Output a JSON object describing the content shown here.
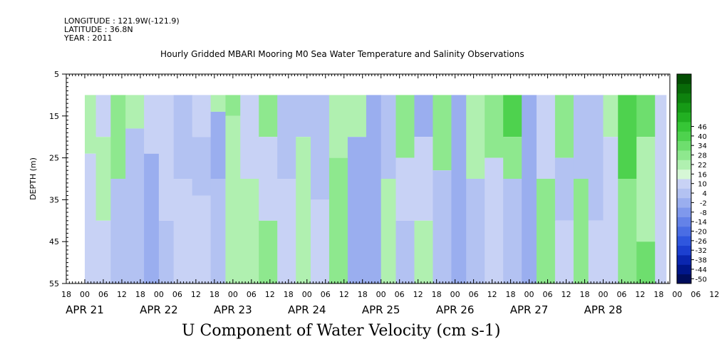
{
  "header": {
    "longitude": "LONGITUDE : 121.9W(-121.9)",
    "latitude": "LATITUDE : 36.8N",
    "year": "YEAR : 2011"
  },
  "chart_data": {
    "type": "heatmap",
    "title": "Hourly Gridded MBARI Mooring M0 Sea Water Temperature and Salinity Observations",
    "xlabel": "U Component of Water Velocity (cm s-1)",
    "ylabel": "DEPTH (m)",
    "ylim": [
      55,
      5
    ],
    "y_ticks": [
      5,
      15,
      25,
      35,
      45,
      55
    ],
    "x_hour_ticks": [
      "18",
      "00",
      "06",
      "12",
      "18",
      "00",
      "06",
      "12",
      "18",
      "00",
      "06",
      "12",
      "18",
      "00",
      "06",
      "12",
      "18",
      "00",
      "06",
      "12",
      "18",
      "00",
      "06",
      "12",
      "18",
      "00",
      "06",
      "12",
      "18",
      "00",
      "06",
      "12",
      "18",
      "00",
      "06",
      "12",
      "18"
    ],
    "x_date_labels": [
      "APR 21",
      "APR 22",
      "APR 23",
      "APR 24",
      "APR 25",
      "APR 26",
      "APR 27",
      "APR 28"
    ],
    "data_extent": {
      "time_start": "APR 21 00",
      "time_end": "APR 28 20",
      "depth_top": 10,
      "depth_bottom": 55
    },
    "colorbar": {
      "levels": [
        -50,
        -44,
        -38,
        -32,
        -26,
        -20,
        -14,
        -8,
        -2,
        4,
        10,
        16,
        22,
        28,
        34,
        40,
        46
      ],
      "colors": [
        "#000d5c",
        "#00168a",
        "#0a26b0",
        "#1c3fd0",
        "#2f56de",
        "#4a6de4",
        "#6482e8",
        "#7f98ec",
        "#9aaeef",
        "#b3c2f2",
        "#c8d2f5",
        "#d6f7d6",
        "#b0f0b0",
        "#8ee88e",
        "#6ede6e",
        "#4ed24e",
        "#36c636",
        "#22b022",
        "#169a16",
        "#0e820e",
        "#086a08",
        "#034e03"
      ]
    },
    "time_columns": [
      {
        "day": 0.0,
        "bands": [
          [
            10,
            24,
            8
          ],
          [
            24,
            55,
            -8
          ]
        ]
      },
      {
        "day": 0.15,
        "bands": [
          [
            10,
            20,
            -4
          ],
          [
            20,
            40,
            6
          ],
          [
            40,
            55,
            -6
          ]
        ]
      },
      {
        "day": 0.35,
        "bands": [
          [
            10,
            30,
            10
          ],
          [
            30,
            55,
            -10
          ]
        ]
      },
      {
        "day": 0.55,
        "bands": [
          [
            10,
            18,
            4
          ],
          [
            18,
            55,
            -12
          ]
        ]
      },
      {
        "day": 0.8,
        "bands": [
          [
            10,
            24,
            -6
          ],
          [
            24,
            55,
            -16
          ]
        ]
      },
      {
        "day": 1.0,
        "bands": [
          [
            10,
            40,
            -8
          ],
          [
            40,
            55,
            -14
          ]
        ]
      },
      {
        "day": 1.2,
        "bands": [
          [
            10,
            30,
            -10
          ],
          [
            30,
            55,
            -6
          ]
        ]
      },
      {
        "day": 1.45,
        "bands": [
          [
            10,
            20,
            -4
          ],
          [
            20,
            34,
            -10
          ],
          [
            34,
            55,
            -8
          ]
        ]
      },
      {
        "day": 1.7,
        "bands": [
          [
            10,
            14,
            8
          ],
          [
            14,
            30,
            -20
          ],
          [
            30,
            55,
            -12
          ]
        ]
      },
      {
        "day": 1.9,
        "bands": [
          [
            10,
            15,
            14
          ],
          [
            15,
            55,
            6
          ]
        ]
      },
      {
        "day": 2.1,
        "bands": [
          [
            10,
            30,
            -6
          ],
          [
            30,
            55,
            8
          ]
        ]
      },
      {
        "day": 2.35,
        "bands": [
          [
            10,
            20,
            14
          ],
          [
            20,
            40,
            -6
          ],
          [
            40,
            55,
            10
          ]
        ]
      },
      {
        "day": 2.6,
        "bands": [
          [
            10,
            30,
            -10
          ],
          [
            30,
            55,
            -4
          ]
        ]
      },
      {
        "day": 2.85,
        "bands": [
          [
            10,
            20,
            -12
          ],
          [
            20,
            55,
            6
          ]
        ]
      },
      {
        "day": 3.05,
        "bands": [
          [
            10,
            35,
            -14
          ],
          [
            35,
            55,
            -6
          ]
        ]
      },
      {
        "day": 3.3,
        "bands": [
          [
            10,
            25,
            8
          ],
          [
            25,
            55,
            12
          ]
        ]
      },
      {
        "day": 3.55,
        "bands": [
          [
            10,
            20,
            6
          ],
          [
            20,
            55,
            -16
          ]
        ]
      },
      {
        "day": 3.8,
        "bands": [
          [
            10,
            55,
            -20
          ]
        ]
      },
      {
        "day": 4.0,
        "bands": [
          [
            10,
            30,
            -10
          ],
          [
            30,
            55,
            4
          ]
        ]
      },
      {
        "day": 4.2,
        "bands": [
          [
            10,
            25,
            10
          ],
          [
            25,
            40,
            -8
          ],
          [
            40,
            55,
            -12
          ]
        ]
      },
      {
        "day": 4.45,
        "bands": [
          [
            10,
            20,
            -20
          ],
          [
            20,
            40,
            -8
          ],
          [
            40,
            55,
            8
          ]
        ]
      },
      {
        "day": 4.7,
        "bands": [
          [
            10,
            28,
            10
          ],
          [
            28,
            55,
            -10
          ]
        ]
      },
      {
        "day": 4.95,
        "bands": [
          [
            10,
            55,
            -18
          ]
        ]
      },
      {
        "day": 5.15,
        "bands": [
          [
            10,
            30,
            6
          ],
          [
            30,
            55,
            -14
          ]
        ]
      },
      {
        "day": 5.4,
        "bands": [
          [
            10,
            25,
            14
          ],
          [
            25,
            55,
            -8
          ]
        ]
      },
      {
        "day": 5.65,
        "bands": [
          [
            10,
            20,
            22
          ],
          [
            20,
            30,
            10
          ],
          [
            30,
            55,
            -10
          ]
        ]
      },
      {
        "day": 5.9,
        "bands": [
          [
            10,
            55,
            -16
          ]
        ]
      },
      {
        "day": 6.1,
        "bands": [
          [
            10,
            30,
            -8
          ],
          [
            30,
            55,
            10
          ]
        ]
      },
      {
        "day": 6.35,
        "bands": [
          [
            10,
            25,
            14
          ],
          [
            25,
            40,
            -10
          ],
          [
            40,
            55,
            -6
          ]
        ]
      },
      {
        "day": 6.6,
        "bands": [
          [
            10,
            30,
            -14
          ],
          [
            30,
            55,
            10
          ]
        ]
      },
      {
        "day": 6.8,
        "bands": [
          [
            10,
            40,
            -10
          ],
          [
            40,
            55,
            -4
          ]
        ]
      },
      {
        "day": 7.0,
        "bands": [
          [
            10,
            20,
            8
          ],
          [
            20,
            55,
            -8
          ]
        ]
      },
      {
        "day": 7.2,
        "bands": [
          [
            10,
            30,
            22
          ],
          [
            30,
            55,
            10
          ]
        ]
      },
      {
        "day": 7.45,
        "bands": [
          [
            10,
            20,
            16
          ],
          [
            20,
            45,
            8
          ],
          [
            45,
            55,
            16
          ]
        ]
      },
      {
        "day": 7.7,
        "bands": [
          [
            10,
            55,
            -6
          ]
        ]
      }
    ]
  }
}
